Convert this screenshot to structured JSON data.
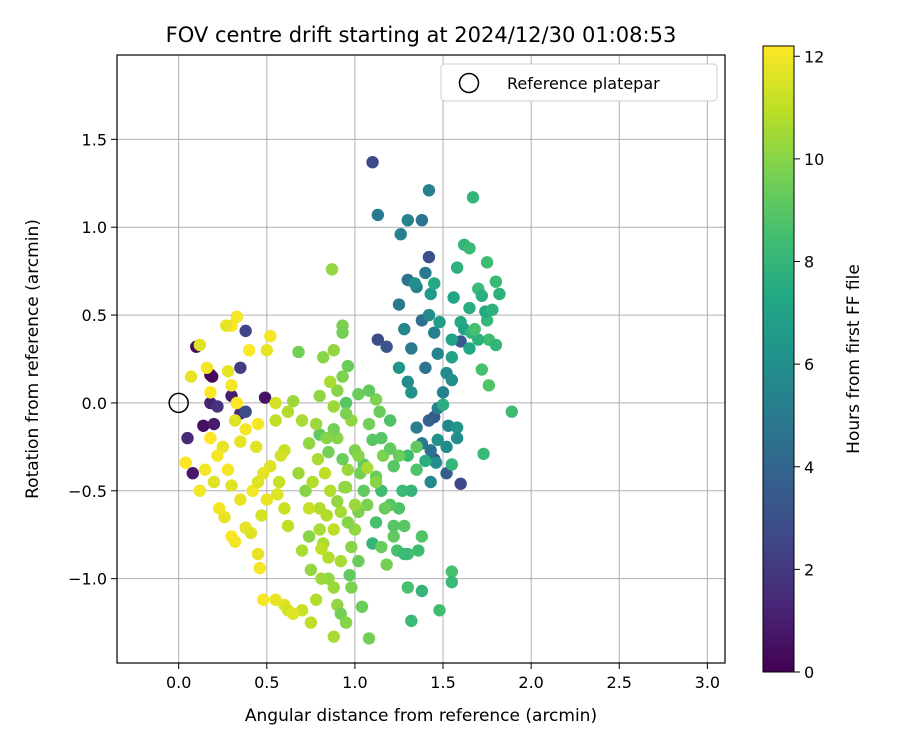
{
  "chart_data": {
    "type": "scatter",
    "title": "FOV centre drift starting at 2024/12/30 01:08:53",
    "xlabel": "Angular distance from reference (arcmin)",
    "ylabel": "Rotation from reference (arcmin)",
    "xlim": [
      -0.35,
      3.1
    ],
    "ylim": [
      -1.48,
      1.98
    ],
    "xticks": [
      "0.0",
      "0.5",
      "1.0",
      "1.5",
      "2.0",
      "2.5",
      "3.0"
    ],
    "xtick_values": [
      0,
      0.5,
      1,
      1.5,
      2,
      2.5,
      3
    ],
    "yticks": [
      "−1.0",
      "−0.5",
      "0.0",
      "0.5",
      "1.0",
      "1.5"
    ],
    "ytick_values": [
      -1,
      -0.5,
      0,
      0.5,
      1,
      1.5
    ],
    "grid": true,
    "legend": {
      "position": "top-right",
      "entries": [
        {
          "label": "Reference platepar",
          "marker": "open-circle"
        }
      ]
    },
    "reference_point": {
      "x": 0.0,
      "y": 0.0
    },
    "colorbar": {
      "label": "Hours from first FF file",
      "range": [
        0,
        12.2
      ],
      "ticks": [
        "0",
        "2",
        "4",
        "6",
        "8",
        "10",
        "12"
      ],
      "tick_values": [
        0,
        2,
        4,
        6,
        8,
        10,
        12
      ],
      "colormap": "viridis"
    },
    "points_format": [
      "x",
      "y",
      "hours"
    ],
    "points": [
      [
        0.1,
        0.32,
        0.4
      ],
      [
        0.19,
        0.15,
        0.3
      ],
      [
        0.18,
        0.0,
        1.2
      ],
      [
        0.05,
        -0.2,
        1.5
      ],
      [
        0.08,
        -0.4,
        0.8
      ],
      [
        0.14,
        -0.13,
        0.5
      ],
      [
        0.2,
        -0.12,
        0.9
      ],
      [
        0.3,
        0.04,
        1.0
      ],
      [
        0.35,
        -0.06,
        1.6
      ],
      [
        0.35,
        0.2,
        2.2
      ],
      [
        0.38,
        0.41,
        2.5
      ],
      [
        0.49,
        0.03,
        0.6
      ],
      [
        0.38,
        -0.05,
        2.8
      ],
      [
        0.22,
        -0.02,
        1.8
      ],
      [
        0.18,
        0.16,
        0.2
      ],
      [
        1.1,
        1.37,
        2.8
      ],
      [
        1.13,
        0.36,
        2.8
      ],
      [
        1.18,
        0.32,
        3.2
      ],
      [
        1.42,
        0.83,
        3.0
      ],
      [
        1.45,
        -0.32,
        3.0
      ],
      [
        1.45,
        -0.08,
        3.4
      ],
      [
        1.6,
        -0.46,
        2.6
      ],
      [
        1.52,
        -0.4,
        3.6
      ],
      [
        1.6,
        0.35,
        3.5
      ],
      [
        1.42,
        -0.1,
        3.8
      ],
      [
        1.13,
        1.07,
        5.0
      ],
      [
        1.42,
        1.21,
        5.3
      ],
      [
        1.26,
        0.96,
        5.2
      ],
      [
        1.3,
        1.04,
        5.4
      ],
      [
        1.38,
        1.04,
        4.8
      ],
      [
        1.25,
        0.56,
        5.0
      ],
      [
        1.3,
        0.7,
        4.6
      ],
      [
        1.35,
        0.66,
        5.2
      ],
      [
        1.4,
        0.74,
        5.0
      ],
      [
        1.28,
        0.42,
        5.6
      ],
      [
        1.32,
        0.31,
        5.0
      ],
      [
        1.38,
        0.47,
        4.4
      ],
      [
        1.42,
        0.5,
        5.8
      ],
      [
        1.45,
        0.4,
        5.2
      ],
      [
        1.4,
        0.2,
        4.8
      ],
      [
        1.47,
        0.28,
        5.5
      ],
      [
        1.52,
        0.17,
        5.8
      ],
      [
        1.55,
        0.13,
        6.0
      ],
      [
        1.5,
        0.06,
        5.4
      ],
      [
        1.47,
        -0.03,
        5.2
      ],
      [
        1.53,
        -0.13,
        5.6
      ],
      [
        1.47,
        -0.21,
        6.2
      ],
      [
        1.52,
        -0.25,
        5.8
      ],
      [
        1.43,
        -0.27,
        4.6
      ],
      [
        1.46,
        -0.34,
        6.0
      ],
      [
        1.35,
        -0.14,
        5.2
      ],
      [
        1.38,
        -0.23,
        5.0
      ],
      [
        1.43,
        -0.45,
        5.8
      ],
      [
        1.58,
        -0.14,
        6.4
      ],
      [
        1.58,
        -0.2,
        6.0
      ],
      [
        1.3,
        0.12,
        5.8
      ],
      [
        1.32,
        0.06,
        6.2
      ],
      [
        1.25,
        0.2,
        6.4
      ],
      [
        1.34,
        0.68,
        6.0
      ],
      [
        1.43,
        0.62,
        6.6
      ],
      [
        1.48,
        0.46,
        6.8
      ],
      [
        1.55,
        0.36,
        7.0
      ],
      [
        1.56,
        0.6,
        7.2
      ],
      [
        1.6,
        0.46,
        7.4
      ],
      [
        1.62,
        0.42,
        7.0
      ],
      [
        1.65,
        0.54,
        7.6
      ],
      [
        1.58,
        0.77,
        7.8
      ],
      [
        1.62,
        0.9,
        8.0
      ],
      [
        1.65,
        0.88,
        8.2
      ],
      [
        1.67,
        1.17,
        8.0
      ],
      [
        1.7,
        0.65,
        8.2
      ],
      [
        1.72,
        0.61,
        7.6
      ],
      [
        1.75,
        0.8,
        8.4
      ],
      [
        1.75,
        0.47,
        8.0
      ],
      [
        1.8,
        0.69,
        8.2
      ],
      [
        1.82,
        0.62,
        7.8
      ],
      [
        1.76,
        0.36,
        8.4
      ],
      [
        1.7,
        0.36,
        7.8
      ],
      [
        1.72,
        0.19,
        8.6
      ],
      [
        1.76,
        0.1,
        8.8
      ],
      [
        1.73,
        -0.29,
        8.2
      ],
      [
        1.89,
        -0.05,
        8.4
      ],
      [
        1.66,
        0.4,
        8.0
      ],
      [
        1.74,
        0.52,
        7.4
      ],
      [
        1.78,
        0.53,
        7.8
      ],
      [
        1.65,
        0.31,
        7.2
      ],
      [
        1.68,
        0.42,
        8.6
      ],
      [
        1.8,
        0.33,
        8.0
      ],
      [
        1.55,
        0.26,
        7.0
      ],
      [
        1.45,
        0.68,
        7.4
      ],
      [
        1.55,
        -0.35,
        8.0
      ],
      [
        1.5,
        -0.01,
        7.6
      ],
      [
        1.4,
        -0.33,
        7.6
      ],
      [
        1.35,
        -0.38,
        8.8
      ],
      [
        1.3,
        -0.3,
        8.4
      ],
      [
        1.27,
        -0.5,
        8.2
      ],
      [
        1.25,
        -0.6,
        8.8
      ],
      [
        1.32,
        -0.5,
        8.0
      ],
      [
        1.28,
        -0.7,
        9.0
      ],
      [
        1.3,
        -0.86,
        8.6
      ],
      [
        1.24,
        -0.84,
        8.6
      ],
      [
        1.36,
        -0.84,
        8.4
      ],
      [
        1.38,
        -0.76,
        8.8
      ],
      [
        1.22,
        -0.76,
        9.2
      ],
      [
        1.2,
        -0.58,
        9.0
      ],
      [
        1.15,
        -0.5,
        8.4
      ],
      [
        1.12,
        -0.68,
        8.6
      ],
      [
        1.1,
        -0.8,
        8.0
      ],
      [
        1.15,
        -0.82,
        9.4
      ],
      [
        1.18,
        -0.92,
        9.6
      ],
      [
        1.12,
        -0.42,
        9.4
      ],
      [
        1.16,
        -0.3,
        9.8
      ],
      [
        1.05,
        -0.35,
        9.2
      ],
      [
        1.1,
        -0.21,
        9.0
      ],
      [
        1.08,
        -0.12,
        9.6
      ],
      [
        1.12,
        0.02,
        9.8
      ],
      [
        1.02,
        0.05,
        9.4
      ],
      [
        0.95,
        0.0,
        9.0
      ],
      [
        0.98,
        -0.1,
        10.2
      ],
      [
        0.9,
        -0.2,
        10.0
      ],
      [
        0.85,
        -0.28,
        9.6
      ],
      [
        0.8,
        -0.18,
        9.2
      ],
      [
        0.78,
        -0.12,
        10.4
      ],
      [
        0.7,
        -0.1,
        10.6
      ],
      [
        0.74,
        -0.23,
        10.2
      ],
      [
        0.68,
        -0.4,
        10.4
      ],
      [
        0.72,
        -0.5,
        10.0
      ],
      [
        0.8,
        -0.6,
        10.8
      ],
      [
        0.82,
        -0.8,
        10.6
      ],
      [
        0.85,
        -1.0,
        10.2
      ],
      [
        0.88,
        -1.05,
        10.4
      ],
      [
        0.9,
        -1.15,
        10.2
      ],
      [
        0.92,
        -1.2,
        9.6
      ],
      [
        0.98,
        -1.05,
        9.8
      ],
      [
        0.97,
        -0.98,
        9.2
      ],
      [
        1.04,
        -1.16,
        9.4
      ],
      [
        1.08,
        -1.34,
        9.6
      ],
      [
        0.95,
        -1.25,
        10.0
      ],
      [
        0.88,
        -1.33,
        10.6
      ],
      [
        0.75,
        -1.25,
        11.0
      ],
      [
        0.7,
        -1.18,
        11.2
      ],
      [
        0.6,
        -1.15,
        11.6
      ],
      [
        0.55,
        -1.12,
        11.8
      ],
      [
        0.48,
        -1.12,
        12.0
      ],
      [
        0.62,
        -1.18,
        11.4
      ],
      [
        0.65,
        -1.2,
        11.6
      ],
      [
        0.78,
        -1.12,
        10.8
      ],
      [
        0.81,
        -1.0,
        10.4
      ],
      [
        0.75,
        -0.95,
        10.2
      ],
      [
        0.7,
        -0.84,
        10.6
      ],
      [
        0.74,
        -0.76,
        10.0
      ],
      [
        0.8,
        -0.72,
        10.6
      ],
      [
        0.84,
        -0.64,
        10.8
      ],
      [
        0.9,
        -0.56,
        10.2
      ],
      [
        0.94,
        -0.48,
        10.0
      ],
      [
        0.96,
        -0.38,
        10.4
      ],
      [
        1.0,
        -0.27,
        9.8
      ],
      [
        1.03,
        -0.4,
        9.6
      ],
      [
        1.05,
        -0.5,
        9.2
      ],
      [
        1.02,
        -0.62,
        9.8
      ],
      [
        1.0,
        -0.72,
        10.2
      ],
      [
        0.98,
        -0.82,
        10.0
      ],
      [
        0.92,
        -0.9,
        10.6
      ],
      [
        0.88,
        -0.72,
        11.0
      ],
      [
        0.86,
        -0.5,
        10.8
      ],
      [
        0.83,
        -0.4,
        11.0
      ],
      [
        0.79,
        -0.32,
        10.6
      ],
      [
        0.87,
        0.76,
        10.2
      ],
      [
        0.93,
        0.44,
        9.8
      ],
      [
        0.93,
        0.4,
        9.6
      ],
      [
        0.88,
        0.3,
        10.2
      ],
      [
        0.82,
        0.26,
        10.0
      ],
      [
        0.96,
        0.21,
        9.4
      ],
      [
        0.93,
        0.15,
        9.8
      ],
      [
        0.9,
        0.07,
        10.0
      ],
      [
        0.86,
        0.12,
        10.6
      ],
      [
        0.8,
        0.04,
        10.2
      ],
      [
        0.88,
        -0.02,
        10.4
      ],
      [
        0.95,
        -0.06,
        9.8
      ],
      [
        1.08,
        0.07,
        9.2
      ],
      [
        1.14,
        -0.05,
        9.4
      ],
      [
        1.15,
        -0.2,
        9.0
      ],
      [
        1.2,
        -0.1,
        8.8
      ],
      [
        1.25,
        -0.3,
        9.4
      ],
      [
        1.35,
        -0.25,
        9.2
      ],
      [
        0.68,
        0.29,
        9.6
      ],
      [
        0.65,
        0.01,
        10.4
      ],
      [
        0.62,
        -0.05,
        10.8
      ],
      [
        0.55,
        -0.1,
        11.0
      ],
      [
        0.6,
        -0.27,
        11.2
      ],
      [
        0.58,
        -0.3,
        11.4
      ],
      [
        0.52,
        -0.36,
        11.6
      ],
      [
        0.48,
        -0.4,
        11.8
      ],
      [
        0.42,
        -0.5,
        12.0
      ],
      [
        0.35,
        -0.55,
        11.8
      ],
      [
        0.3,
        -0.47,
        11.6
      ],
      [
        0.28,
        -0.38,
        12.0
      ],
      [
        0.25,
        -0.25,
        11.8
      ],
      [
        0.22,
        -0.3,
        12.0
      ],
      [
        0.18,
        -0.2,
        12.2
      ],
      [
        0.12,
        -0.5,
        12.0
      ],
      [
        0.2,
        -0.45,
        11.6
      ],
      [
        0.23,
        -0.6,
        12.0
      ],
      [
        0.26,
        -0.65,
        11.8
      ],
      [
        0.3,
        -0.76,
        12.2
      ],
      [
        0.32,
        -0.79,
        12.0
      ],
      [
        0.38,
        -0.71,
        11.8
      ],
      [
        0.41,
        -0.74,
        11.6
      ],
      [
        0.45,
        -0.86,
        11.8
      ],
      [
        0.46,
        -0.94,
        12.0
      ],
      [
        0.47,
        -0.64,
        11.4
      ],
      [
        0.5,
        -0.55,
        11.8
      ],
      [
        0.56,
        -0.52,
        11.6
      ],
      [
        0.6,
        -0.6,
        11.2
      ],
      [
        0.62,
        -0.7,
        11.0
      ],
      [
        0.44,
        -0.25,
        11.6
      ],
      [
        0.45,
        -0.12,
        12.0
      ],
      [
        0.38,
        -0.15,
        12.0
      ],
      [
        0.35,
        -0.22,
        11.8
      ],
      [
        0.32,
        -0.1,
        11.6
      ],
      [
        0.33,
        0.0,
        12.2
      ],
      [
        0.3,
        0.1,
        12.0
      ],
      [
        0.28,
        0.18,
        11.8
      ],
      [
        0.3,
        0.44,
        12.2
      ],
      [
        0.33,
        0.49,
        12.0
      ],
      [
        0.27,
        0.44,
        11.8
      ],
      [
        0.18,
        0.06,
        12.2
      ],
      [
        0.16,
        0.2,
        12.0
      ],
      [
        0.12,
        0.33,
        11.6
      ],
      [
        0.07,
        0.15,
        11.8
      ],
      [
        0.04,
        -0.34,
        12.2
      ],
      [
        0.15,
        -0.38,
        12.0
      ],
      [
        0.55,
        0.0,
        11.4
      ],
      [
        0.5,
        0.3,
        11.8
      ],
      [
        0.52,
        0.38,
        12.0
      ],
      [
        0.4,
        0.3,
        12.2
      ],
      [
        0.45,
        -0.45,
        11.6
      ],
      [
        0.57,
        -0.45,
        11.2
      ],
      [
        0.95,
        -0.48,
        10.2
      ],
      [
        1.0,
        -0.58,
        10.4
      ],
      [
        1.2,
        -0.26,
        9.2
      ],
      [
        1.22,
        -0.36,
        9.0
      ],
      [
        1.28,
        -0.86,
        8.2
      ],
      [
        1.3,
        -1.05,
        8.6
      ],
      [
        1.32,
        -1.24,
        8.2
      ],
      [
        1.38,
        -1.07,
        8.0
      ],
      [
        1.48,
        -1.18,
        8.4
      ],
      [
        1.55,
        -0.96,
        8.6
      ],
      [
        1.55,
        -1.02,
        8.2
      ],
      [
        1.07,
        -0.58,
        9.8
      ],
      [
        1.02,
        -0.9,
        9.4
      ],
      [
        0.96,
        -0.68,
        10.0
      ],
      [
        0.92,
        -0.62,
        10.6
      ],
      [
        0.85,
        -0.88,
        10.8
      ],
      [
        0.81,
        -0.83,
        11.0
      ],
      [
        0.74,
        -0.6,
        11.2
      ],
      [
        0.76,
        -0.45,
        10.8
      ],
      [
        0.84,
        -0.2,
        10.0
      ],
      [
        0.88,
        -0.15,
        9.6
      ],
      [
        0.93,
        -0.32,
        9.4
      ],
      [
        1.02,
        -0.3,
        10.0
      ],
      [
        1.07,
        -0.37,
        10.6
      ],
      [
        1.12,
        -0.45,
        10.0
      ],
      [
        1.17,
        -0.6,
        9.4
      ],
      [
        1.22,
        -0.7,
        9.0
      ]
    ]
  }
}
